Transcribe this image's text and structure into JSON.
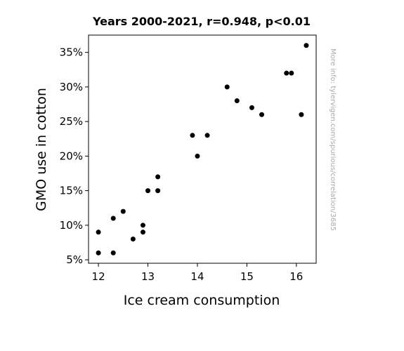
{
  "chart_data": {
    "type": "scatter",
    "title": "Years 2000-2021, r=0.948, p<0.01",
    "xlabel": "Ice cream consumption",
    "ylabel": "GMO use in cotton",
    "credit": "More info: tylervigen.com/spurious/correlation/3685",
    "xlim": [
      11.8,
      16.4
    ],
    "ylim": [
      4.5,
      37.5
    ],
    "x_ticks": [
      12,
      13,
      14,
      15,
      16
    ],
    "x_tick_labels": [
      "12",
      "13",
      "14",
      "15",
      "16"
    ],
    "y_ticks": [
      5,
      10,
      15,
      20,
      25,
      30,
      35
    ],
    "y_tick_labels": [
      "5%",
      "10%",
      "15%",
      "20%",
      "25%",
      "30%",
      "35%"
    ],
    "grid": false,
    "marker_color": "#000000",
    "points": [
      {
        "x": 12.0,
        "y": 9
      },
      {
        "x": 12.0,
        "y": 6
      },
      {
        "x": 12.3,
        "y": 11
      },
      {
        "x": 12.3,
        "y": 6
      },
      {
        "x": 12.5,
        "y": 12
      },
      {
        "x": 12.7,
        "y": 8
      },
      {
        "x": 12.9,
        "y": 10
      },
      {
        "x": 12.9,
        "y": 9
      },
      {
        "x": 13.0,
        "y": 15
      },
      {
        "x": 13.2,
        "y": 17
      },
      {
        "x": 13.2,
        "y": 15
      },
      {
        "x": 13.9,
        "y": 23
      },
      {
        "x": 14.0,
        "y": 20
      },
      {
        "x": 14.2,
        "y": 23
      },
      {
        "x": 14.6,
        "y": 30
      },
      {
        "x": 14.8,
        "y": 28
      },
      {
        "x": 15.1,
        "y": 27
      },
      {
        "x": 15.3,
        "y": 26
      },
      {
        "x": 15.8,
        "y": 32
      },
      {
        "x": 15.9,
        "y": 32
      },
      {
        "x": 16.1,
        "y": 26
      },
      {
        "x": 16.2,
        "y": 36
      }
    ]
  }
}
